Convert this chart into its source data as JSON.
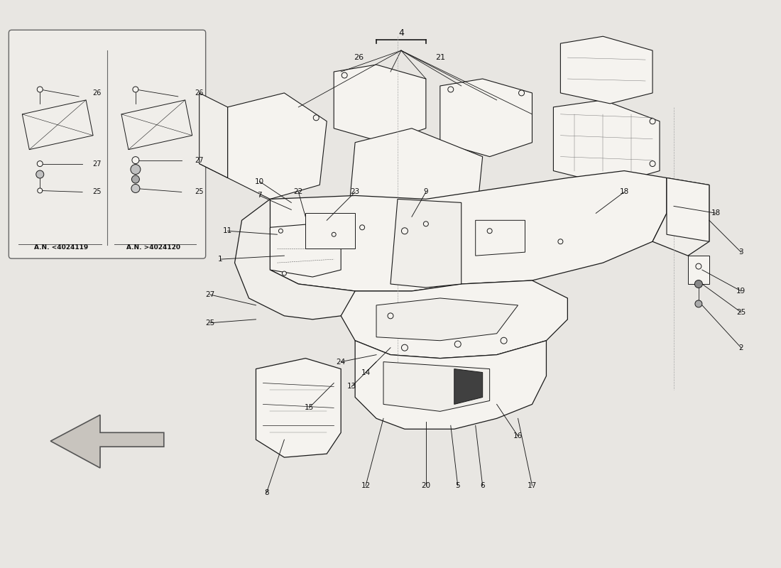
{
  "bg_color": "#e8e6e2",
  "line_color": "#1a1a1a",
  "label_color": "#111111",
  "mat_fill": "#f0eeea",
  "body_fill": "#ede9e4",
  "white_fill": "#f5f3ef",
  "inset_bg": "#eeece8",
  "watermark_color": "#d8d4ce",
  "inset_label_left": "A.N. <4024119",
  "inset_label_right": "A.N. >4024120"
}
